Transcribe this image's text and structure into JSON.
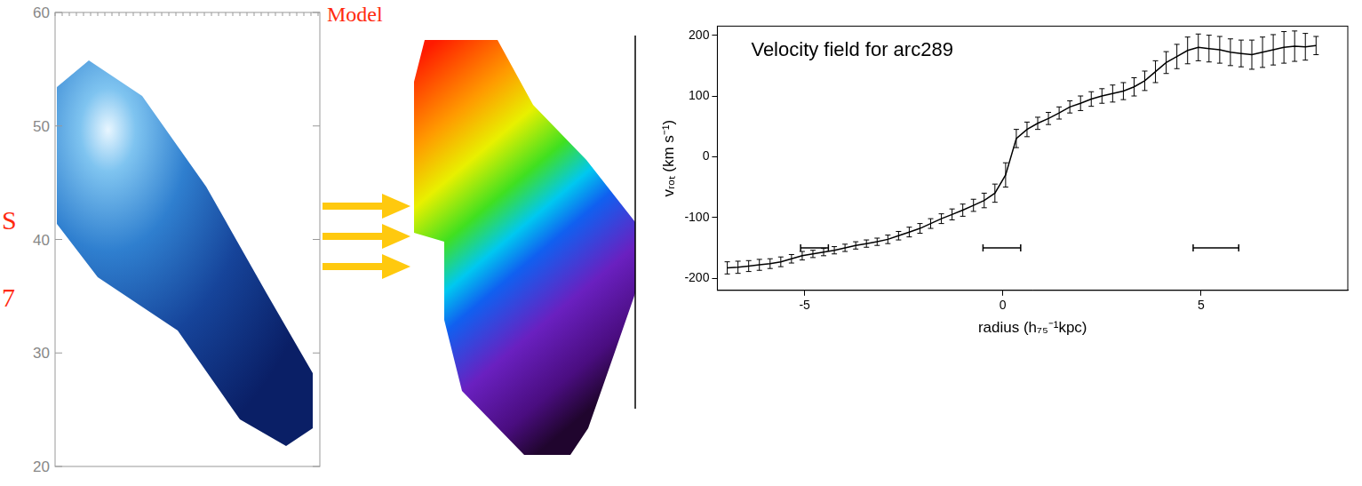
{
  "panels": {
    "observed": {
      "ylim": [
        20,
        60
      ],
      "yticks": [
        20,
        30,
        40,
        50,
        60
      ],
      "side_text": [
        "S",
        "7"
      ]
    },
    "model": {
      "title": "Model"
    }
  },
  "chart_data": {
    "type": "line",
    "title": "Velocity field for arc289",
    "x_label": "radius (h₇₅⁻¹kpc)",
    "y_label": "vᵣₒₜ (km s⁻¹)",
    "color": "#000000",
    "grid": false,
    "xlim": [
      -7.2,
      8.7
    ],
    "ylim": [
      -220,
      215
    ],
    "xticks": [
      -5,
      0,
      5
    ],
    "yticks": [
      -200,
      -100,
      0,
      100,
      200
    ],
    "x": [
      -6.95,
      -6.68,
      -6.41,
      -6.14,
      -5.87,
      -5.6,
      -5.33,
      -5.06,
      -4.79,
      -4.52,
      -4.25,
      -3.98,
      -3.71,
      -3.44,
      -3.17,
      -2.9,
      -2.63,
      -2.36,
      -2.09,
      -1.82,
      -1.55,
      -1.28,
      -1.01,
      -0.74,
      -0.47,
      -0.2,
      0.07,
      0.34,
      0.61,
      0.88,
      1.15,
      1.42,
      1.69,
      1.96,
      2.23,
      2.5,
      2.77,
      3.04,
      3.31,
      3.58,
      3.85,
      4.12,
      4.39,
      4.66,
      4.93,
      5.2,
      5.47,
      5.74,
      6.01,
      6.28,
      6.55,
      6.82,
      7.09,
      7.36,
      7.63,
      7.9
    ],
    "values": [
      -183,
      -182,
      -180,
      -178,
      -176,
      -173,
      -168,
      -163,
      -160,
      -157,
      -154,
      -150,
      -146,
      -143,
      -140,
      -136,
      -130,
      -124,
      -118,
      -110,
      -102,
      -95,
      -88,
      -80,
      -72,
      -60,
      -30,
      30,
      45,
      55,
      63,
      72,
      82,
      88,
      95,
      100,
      104,
      108,
      115,
      125,
      140,
      155,
      165,
      175,
      180,
      178,
      176,
      172,
      170,
      168,
      172,
      176,
      180,
      182,
      181,
      183
    ],
    "errors": [
      10,
      10,
      9,
      9,
      8,
      8,
      7,
      7,
      6,
      6,
      6,
      6,
      6,
      6,
      6,
      7,
      7,
      8,
      8,
      8,
      8,
      9,
      10,
      10,
      12,
      15,
      20,
      15,
      12,
      10,
      10,
      10,
      10,
      12,
      12,
      12,
      14,
      14,
      15,
      16,
      18,
      18,
      20,
      22,
      22,
      22,
      22,
      22,
      22,
      24,
      25,
      25,
      26,
      25,
      22,
      15
    ],
    "resolution_bars": [
      {
        "x": [
          -5.1,
          -4.4
        ],
        "y": -150
      },
      {
        "x": [
          -0.5,
          0.45
        ],
        "y": -150
      },
      {
        "x": [
          4.8,
          5.95
        ],
        "y": -150
      }
    ]
  }
}
